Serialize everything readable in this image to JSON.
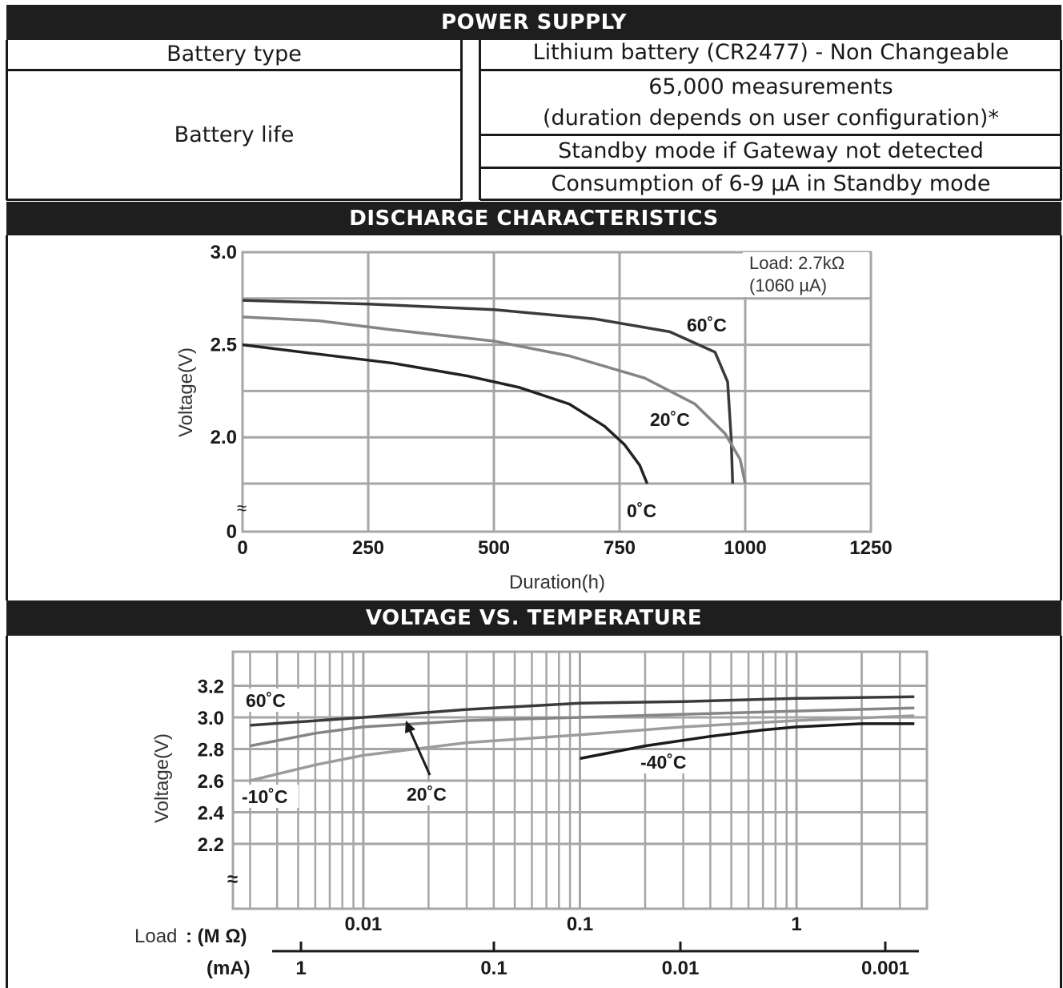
{
  "power_supply": {
    "header": "POWER SUPPLY",
    "rows": [
      {
        "label": "Battery type",
        "value": "Lithium battery (CR2477) - Non Changeable"
      },
      {
        "label": "Battery life",
        "value_line1": "65,000 measurements",
        "value_line2": "(duration depends on user configuration)*",
        "value2": "Standby mode if Gateway not detected",
        "value3": "Consumption of 6-9 µA in Standby mode"
      }
    ]
  },
  "discharge": {
    "header": "DISCHARGE CHARACTERISTICS",
    "ylabel": "Voltage(V)",
    "xlabel": "Duration(h)",
    "load_line1": "Load: 2.7kΩ",
    "load_line2": "(1060 µA)",
    "break_symbol": "≈"
  },
  "voltage_temp": {
    "header": "VOLTAGE VS. TEMPERATURE",
    "ylabel": "Voltage(V)",
    "load_label": "Load",
    "mohm_label": ": (M Ω)",
    "ma_label": "(mA)",
    "break_symbol": "≈",
    "ma_ticks": [
      "1",
      "0.1",
      "0.01",
      "0.001"
    ]
  },
  "chart_data": [
    {
      "type": "line",
      "title": "DISCHARGE CHARACTERISTICS",
      "xlabel": "Duration(h)",
      "ylabel": "Voltage(V)",
      "xlim": [
        0,
        1250
      ],
      "ylim": [
        0,
        3.0
      ],
      "y_break": "axis broken between 0 and about 1.75",
      "x_ticks": [
        "0",
        "250",
        "500",
        "750",
        "1000",
        "1250"
      ],
      "y_ticks": [
        "0",
        "2.0",
        "2.5",
        "3.0"
      ],
      "grid": true,
      "annotation": "Load: 2.7kΩ (1060 µA)",
      "series": [
        {
          "name": "60˚C",
          "x": [
            0,
            250,
            500,
            700,
            850,
            940,
            965,
            972,
            975
          ],
          "y": [
            2.74,
            2.72,
            2.69,
            2.64,
            2.57,
            2.46,
            2.3,
            2.0,
            1.75
          ]
        },
        {
          "name": "20˚C",
          "x": [
            0,
            150,
            300,
            500,
            650,
            800,
            900,
            960,
            990,
            1000
          ],
          "y": [
            2.65,
            2.63,
            2.58,
            2.52,
            2.44,
            2.32,
            2.18,
            2.02,
            1.88,
            1.75
          ]
        },
        {
          "name": "0˚C",
          "x": [
            0,
            150,
            300,
            450,
            550,
            650,
            720,
            760,
            790,
            805
          ],
          "y": [
            2.5,
            2.45,
            2.4,
            2.33,
            2.27,
            2.18,
            2.06,
            1.96,
            1.85,
            1.75
          ]
        }
      ]
    },
    {
      "type": "line",
      "title": "VOLTAGE VS. TEMPERATURE",
      "xlabel": "Load : (M Ω)",
      "ylabel": "Voltage(V)",
      "x_scale": "log",
      "xlim": [
        0.0025,
        4
      ],
      "ylim": [
        2.0,
        3.4
      ],
      "x_ticks": [
        "0.01",
        "0.1",
        "1"
      ],
      "y_ticks": [
        "2.2",
        "2.4",
        "2.6",
        "2.8",
        "3.0",
        "3.2"
      ],
      "secondary_x_label": "(mA)",
      "secondary_x_ticks": [
        "1",
        "0.1",
        "0.01",
        "0.001"
      ],
      "grid": true,
      "series": [
        {
          "name": "60˚C",
          "x": [
            0.003,
            0.01,
            0.03,
            0.1,
            0.3,
            1,
            3.5
          ],
          "y": [
            2.95,
            3.0,
            3.05,
            3.09,
            3.1,
            3.12,
            3.13
          ]
        },
        {
          "name": "20˚C",
          "x": [
            0.003,
            0.006,
            0.01,
            0.03,
            0.1,
            0.3,
            1,
            3.5
          ],
          "y": [
            2.82,
            2.9,
            2.94,
            2.98,
            3.0,
            3.02,
            3.04,
            3.06
          ]
        },
        {
          "name": "-10˚C",
          "x": [
            0.003,
            0.006,
            0.01,
            0.03,
            0.1,
            0.3,
            1,
            3.5
          ],
          "y": [
            2.6,
            2.7,
            2.76,
            2.84,
            2.89,
            2.94,
            2.98,
            3.01
          ]
        },
        {
          "name": "-40˚C",
          "x": [
            0.1,
            0.2,
            0.4,
            0.7,
            1,
            2,
            3.5
          ],
          "y": [
            2.74,
            2.82,
            2.88,
            2.92,
            2.94,
            2.96,
            2.96
          ]
        }
      ]
    }
  ]
}
